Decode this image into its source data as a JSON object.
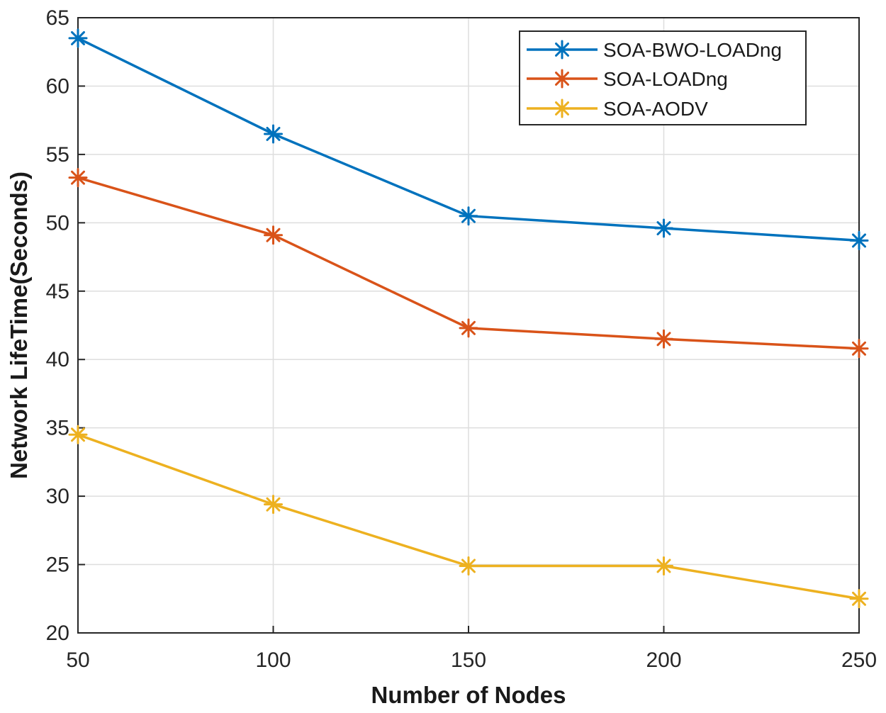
{
  "chart_data": {
    "type": "line",
    "title": "",
    "xlabel": "Number of Nodes",
    "ylabel": "Network LifeTime(Seconds)",
    "x": [
      50,
      100,
      150,
      200,
      250
    ],
    "xlim": [
      50,
      250
    ],
    "ylim": [
      20,
      65
    ],
    "xticks": [
      "50",
      "100",
      "150",
      "200",
      "250"
    ],
    "yticks": [
      "20",
      "25",
      "30",
      "35",
      "40",
      "45",
      "50",
      "55",
      "60",
      "65"
    ],
    "grid": true,
    "legend_position": "top-right",
    "series": [
      {
        "name": "SOA-BWO-LOADng",
        "color": "#0072BD",
        "marker": "asterisk",
        "values": [
          63.5,
          56.5,
          50.5,
          49.6,
          48.7
        ]
      },
      {
        "name": "SOA-LOADng",
        "color": "#D95319",
        "marker": "asterisk",
        "values": [
          53.3,
          49.1,
          42.3,
          41.5,
          40.8
        ]
      },
      {
        "name": "SOA-AODV",
        "color": "#EDB120",
        "marker": "asterisk",
        "values": [
          34.5,
          29.4,
          24.9,
          24.9,
          22.5
        ]
      }
    ]
  }
}
